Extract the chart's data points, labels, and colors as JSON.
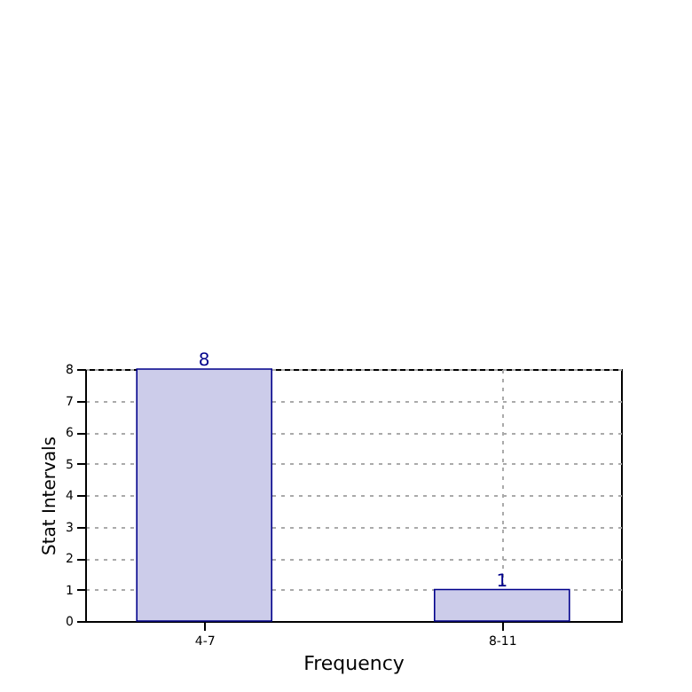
{
  "chart_data": {
    "type": "bar",
    "xlabel": "Frequency",
    "ylabel": "Stat Intervals",
    "categories": [
      "4-7",
      "8-11"
    ],
    "values": [
      8,
      1
    ],
    "color": "#ccccea",
    "ylim": [
      0,
      8
    ],
    "yticks": [
      0,
      1,
      2,
      3,
      4,
      5,
      6,
      7,
      8
    ],
    "grid": true,
    "data_labels": true
  }
}
